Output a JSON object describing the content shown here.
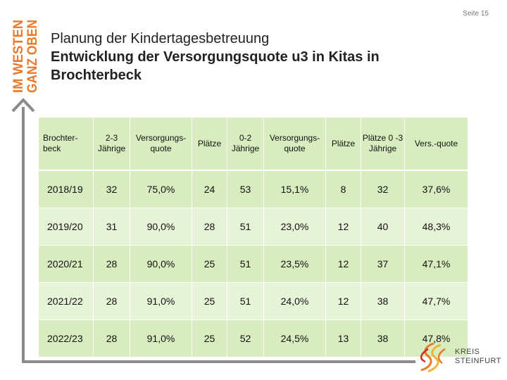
{
  "page_number": "Seite 15",
  "brand_vertical": {
    "line1": "IM WESTEN",
    "line2": "GANZ OBEN"
  },
  "title": {
    "line1": "Planung der Kindertagesbetreuung",
    "line2a": "Entwicklung der Versorgungsquote u3 in Kitas in",
    "line2b": "Brochterbeck"
  },
  "table": {
    "headers": [
      "Brochter-beck",
      "2-3 Jährige",
      "Versorgungs-quote",
      "Plätze",
      "0-2 Jährige",
      "Versorgungs-quote",
      "Plätze",
      "Plätze 0 -3 Jährige",
      "Vers.-quote"
    ],
    "rows": [
      [
        "2018/19",
        "32",
        "75,0%",
        "24",
        "53",
        "15,1%",
        "8",
        "32",
        "37,6%"
      ],
      [
        "2019/20",
        "31",
        "90,0%",
        "28",
        "51",
        "23,0%",
        "12",
        "40",
        "48,3%"
      ],
      [
        "2020/21",
        "28",
        "90,0%",
        "25",
        "51",
        "23,5%",
        "12",
        "37",
        "47,1%"
      ],
      [
        "2021/22",
        "28",
        "91,0%",
        "25",
        "51",
        "24,0%",
        "12",
        "38",
        "47,7%"
      ],
      [
        "2022/23",
        "28",
        "91,0%",
        "25",
        "52",
        "24,5%",
        "13",
        "38",
        "47,8%"
      ]
    ]
  },
  "logo": {
    "line1": "KREIS",
    "line2": "STEINFURT"
  },
  "colors": {
    "accent_orange": "#e8792b",
    "cell_green": "#d9ecc0",
    "axis_gray": "#8a8a8a"
  }
}
